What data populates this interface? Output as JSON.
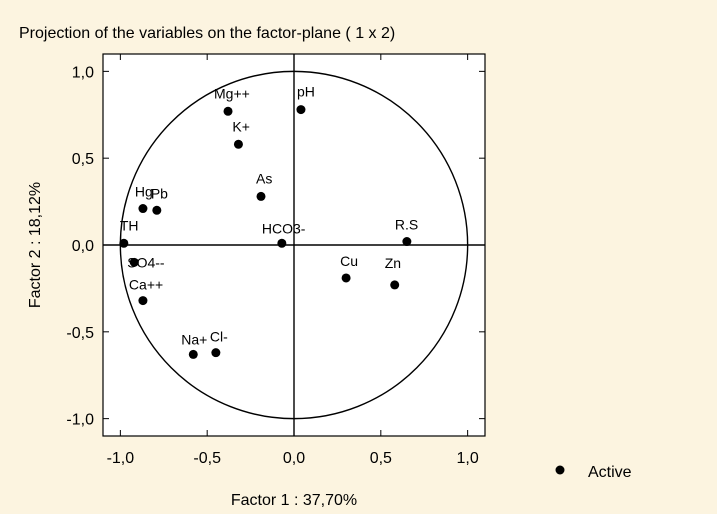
{
  "chart_data": {
    "type": "scatter",
    "title": "Projection of the variables on the factor-plane (  1 x   2)",
    "xlabel": "Factor 1 : 37,70%",
    "ylabel": "Factor 2 : 18,12%",
    "xlim": [
      -1.1,
      1.1
    ],
    "ylim": [
      -1.1,
      1.1
    ],
    "x_ticks": [
      "-1,0",
      "-0,5",
      "0,0",
      "0,5",
      "1,0"
    ],
    "y_ticks": [
      "1,0",
      "0,5",
      "0,0",
      "-0,5",
      "-1,0"
    ],
    "x_tick_values": [
      -1.0,
      -0.5,
      0.0,
      0.5,
      1.0
    ],
    "y_tick_values": [
      1.0,
      0.5,
      0.0,
      -0.5,
      -1.0
    ],
    "unit_circle": true,
    "grid": false,
    "legend_placement": "bottom-right",
    "series": [
      {
        "name": "Active",
        "points": [
          {
            "label": "Mg++",
            "x": -0.38,
            "y": 0.77
          },
          {
            "label": "pH",
            "x": 0.04,
            "y": 0.78
          },
          {
            "label": "K+",
            "x": -0.32,
            "y": 0.58
          },
          {
            "label": "As",
            "x": -0.19,
            "y": 0.28
          },
          {
            "label": "Hg",
            "x": -0.87,
            "y": 0.21
          },
          {
            "label": "Pb",
            "x": -0.79,
            "y": 0.2
          },
          {
            "label": "TH",
            "x": -0.98,
            "y": 0.01
          },
          {
            "label": "HCO3-",
            "x": -0.07,
            "y": 0.01
          },
          {
            "label": "R.S",
            "x": 0.65,
            "y": 0.02
          },
          {
            "label": "SO4--",
            "x": -0.92,
            "y": -0.1
          },
          {
            "label": "Cu",
            "x": 0.3,
            "y": -0.19
          },
          {
            "label": "Zn",
            "x": 0.58,
            "y": -0.23
          },
          {
            "label": "Ca++",
            "x": -0.87,
            "y": -0.32
          },
          {
            "label": "Na+",
            "x": -0.58,
            "y": -0.63
          },
          {
            "label": "Cl-",
            "x": -0.45,
            "y": -0.62
          }
        ]
      }
    ]
  }
}
